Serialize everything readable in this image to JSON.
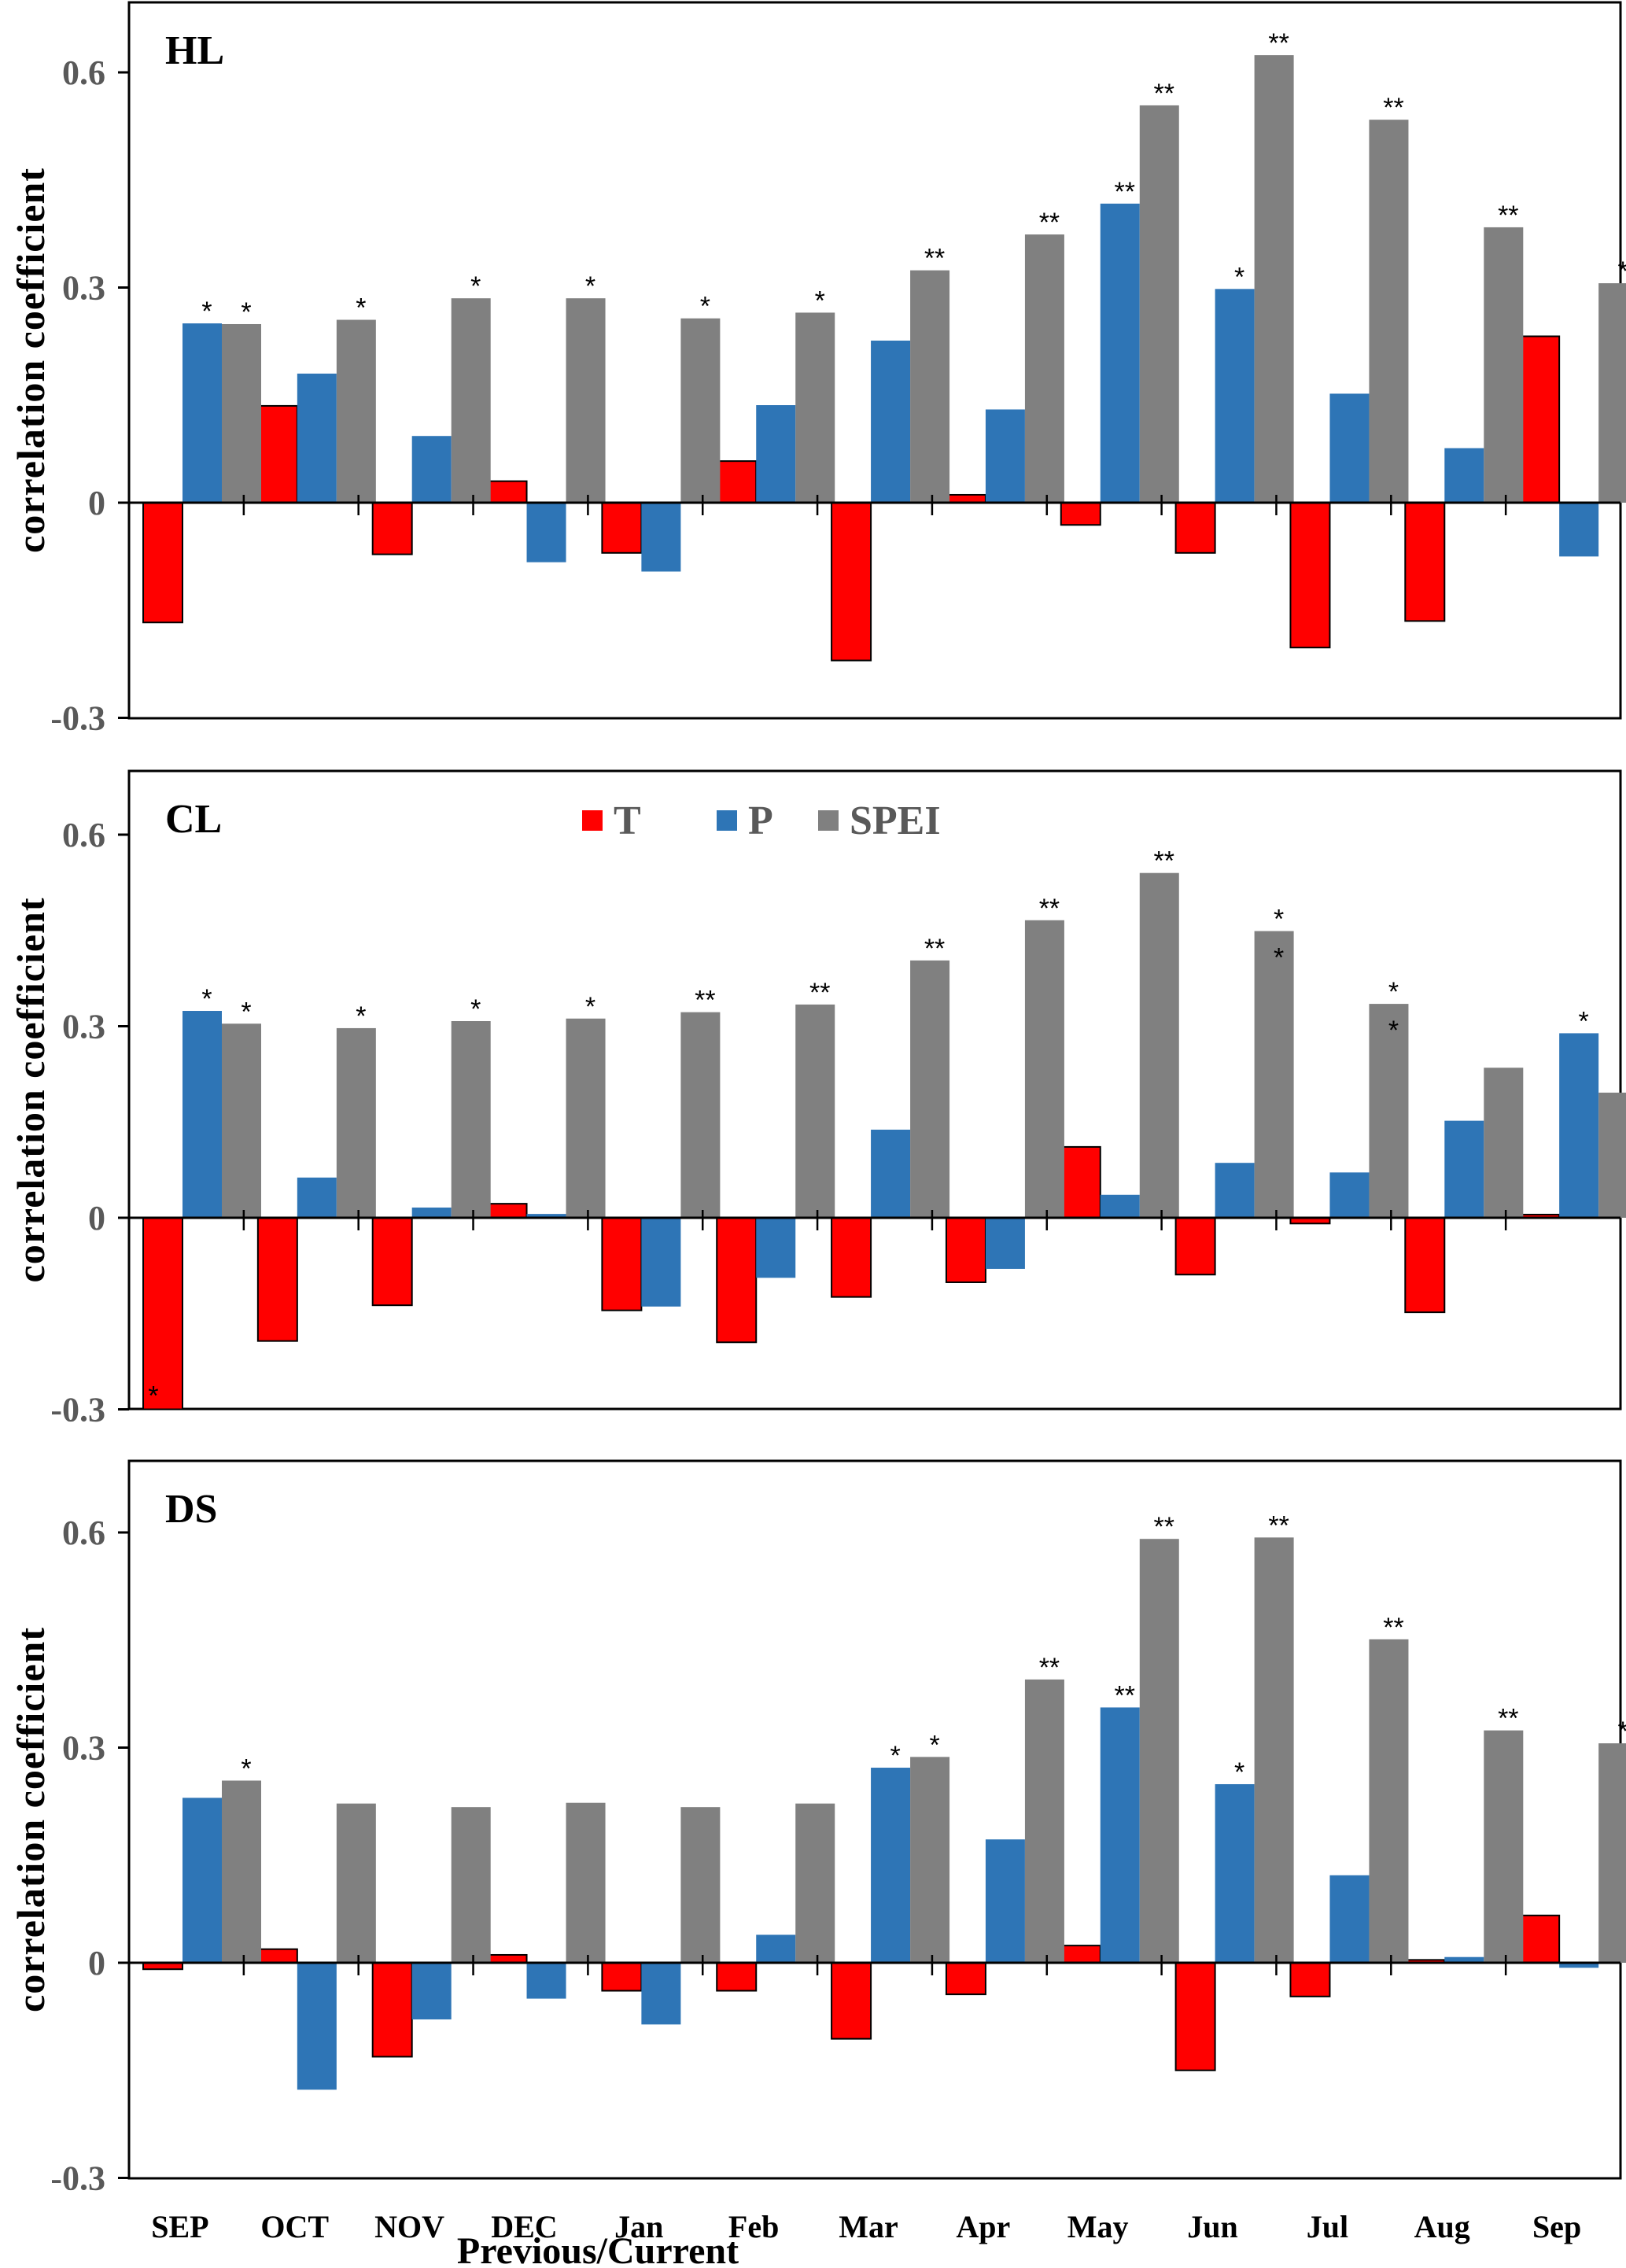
{
  "chart_data": [
    {
      "type": "bar",
      "panel": "HL",
      "categories": [
        "SEP",
        "OCT",
        "NOV",
        "DEC",
        "Jan",
        "Feb",
        "Mar",
        "Apr",
        "May",
        "Jun",
        "Jul",
        "Aug",
        "Sep"
      ],
      "series": [
        {
          "name": "T",
          "values": [
            -0.167,
            0.135,
            -0.072,
            0.03,
            -0.07,
            0.058,
            -0.22,
            0.011,
            -0.031,
            -0.07,
            -0.202,
            -0.165,
            0.232
          ],
          "significance": [
            "",
            "",
            "",
            "",
            "",
            "",
            "",
            "",
            "",
            "",
            "",
            "",
            ""
          ]
        },
        {
          "name": "P",
          "values": [
            0.25,
            0.18,
            0.093,
            -0.083,
            -0.096,
            0.136,
            0.226,
            0.13,
            0.417,
            0.298,
            0.152,
            0.076,
            -0.075
          ],
          "significance": [
            "*",
            "",
            "",
            "",
            "",
            "",
            "",
            "",
            "**",
            "*",
            "",
            "",
            ""
          ]
        },
        {
          "name": "SPEI",
          "values": [
            0.249,
            0.255,
            0.285,
            0.285,
            0.257,
            0.265,
            0.324,
            0.374,
            0.554,
            0.624,
            0.534,
            0.384,
            0.306
          ],
          "significance": [
            "*",
            "*",
            "*",
            "*",
            "*",
            "*",
            "**",
            "**",
            "**",
            "**",
            "**",
            "**",
            "*"
          ]
        }
      ],
      "ylabel": "correlation coefficient",
      "ylim": [
        -0.3,
        0.7
      ],
      "yticks": [
        "-0.3",
        "0",
        "0.3",
        "0.6"
      ]
    },
    {
      "type": "bar",
      "panel": "CL",
      "categories": [
        "SEP",
        "OCT",
        "NOV",
        "DEC",
        "Jan",
        "Feb",
        "Mar",
        "Apr",
        "May",
        "Jun",
        "Jul",
        "Aug",
        "Sep"
      ],
      "series": [
        {
          "name": "T",
          "values": [
            -0.3,
            -0.193,
            -0.137,
            0.022,
            -0.145,
            -0.195,
            -0.124,
            -0.101,
            0.111,
            -0.089,
            -0.009,
            -0.148,
            0.005
          ],
          "significance": [
            "*inside",
            "",
            "",
            "",
            "",
            "",
            "",
            "",
            "",
            "",
            "",
            "",
            ""
          ]
        },
        {
          "name": "P",
          "values": [
            0.324,
            0.063,
            0.016,
            0.006,
            -0.139,
            -0.094,
            0.138,
            -0.08,
            0.036,
            0.086,
            0.071,
            0.152,
            0.289
          ],
          "significance": [
            "*",
            "",
            "",
            "",
            "",
            "",
            "",
            "",
            "",
            "",
            "",
            "",
            "*"
          ]
        },
        {
          "name": "SPEI",
          "values": [
            0.304,
            0.297,
            0.308,
            0.312,
            0.322,
            0.334,
            0.403,
            0.466,
            0.54,
            0.449,
            0.335,
            0.235,
            0.196
          ],
          "significance": [
            "*",
            "*",
            "*",
            "*",
            "**",
            "**",
            "**",
            "**",
            "**",
            "**stacked",
            "**stacked",
            "",
            ""
          ]
        }
      ],
      "ylabel": "correlation coefficient",
      "ylim": [
        -0.3,
        0.65
      ],
      "yticks": [
        "-0.3",
        "0",
        "0.3",
        "0.6"
      ],
      "legend": {
        "placement": "top-center",
        "entries": [
          "T",
          "P",
          "SPEI"
        ]
      }
    },
    {
      "type": "bar",
      "panel": "DS",
      "categories": [
        "SEP",
        "OCT",
        "NOV",
        "DEC",
        "Jan",
        "Feb",
        "Mar",
        "Apr",
        "May",
        "Jun",
        "Jul",
        "Aug",
        "Sep"
      ],
      "series": [
        {
          "name": "T",
          "values": [
            -0.009,
            0.019,
            -0.131,
            0.011,
            -0.039,
            -0.039,
            -0.106,
            -0.044,
            0.024,
            -0.15,
            -0.047,
            0.004,
            0.066
          ],
          "significance": [
            "",
            "",
            "",
            "",
            "",
            "",
            "",
            "",
            "",
            "",
            "",
            "",
            ""
          ]
        },
        {
          "name": "P",
          "values": [
            0.23,
            -0.177,
            -0.079,
            -0.05,
            -0.086,
            0.039,
            0.272,
            0.172,
            0.356,
            0.249,
            0.122,
            0.008,
            -0.007
          ],
          "significance": [
            "",
            "",
            "",
            "",
            "",
            "",
            "*",
            "",
            "**",
            "*",
            "",
            "",
            ""
          ]
        },
        {
          "name": "SPEI",
          "values": [
            0.254,
            0.222,
            0.217,
            0.223,
            0.217,
            0.222,
            0.287,
            0.395,
            0.591,
            0.593,
            0.451,
            0.324,
            0.306
          ],
          "significance": [
            "*",
            "",
            "",
            "",
            "",
            "",
            "*",
            "**",
            "**",
            "**",
            "**",
            "**",
            "*"
          ]
        }
      ],
      "ylabel": "correlation coefficient",
      "ylim": [
        -0.3,
        0.7
      ],
      "yticks": [
        "-0.3",
        "0",
        "0.3",
        "0.6"
      ],
      "xlabel": "Previous/Current"
    }
  ],
  "colors": {
    "T": "#FF0000",
    "P": "#2E75B6",
    "SPEI": "#808080"
  },
  "legend": {
    "entries": [
      "T",
      "P",
      "SPEI"
    ]
  },
  "xlabel": "Previous/Current",
  "ylabel": "correlation coefficient"
}
